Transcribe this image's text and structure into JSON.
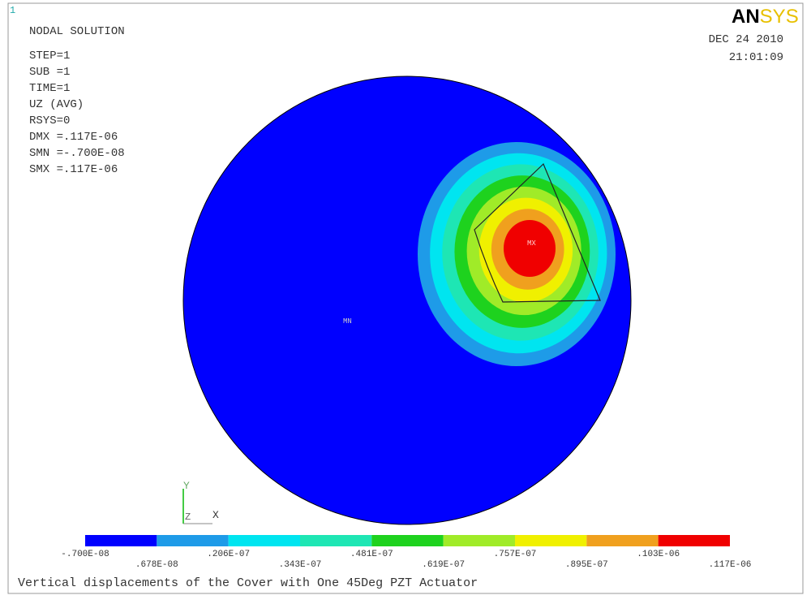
{
  "window_number": "1",
  "header": {
    "title": "NODAL SOLUTION",
    "info": [
      "STEP=1",
      "SUB =1",
      "TIME=1",
      "UZ        (AVG)",
      "RSYS=0",
      "DMX =.117E-06",
      "SMN =-.700E-08",
      "SMX =.117E-06"
    ]
  },
  "logo": {
    "an": "AN",
    "sys": "SYS"
  },
  "date": "DEC 24 2010",
  "time": "21:01:09",
  "plot_labels": {
    "mn": "MN",
    "mx": "MX"
  },
  "triad": {
    "y": "Y",
    "z": "Z",
    "x": "X"
  },
  "legend": {
    "colors": [
      "#0000ff",
      "#1e9be8",
      "#00e5f0",
      "#1ee6b4",
      "#1ed21e",
      "#a0eb28",
      "#f0f000",
      "#f0a01e",
      "#f00000"
    ],
    "labels": [
      "-.700E-08",
      ".678E-08",
      ".206E-07",
      ".343E-07",
      ".481E-07",
      ".619E-07",
      ".757E-07",
      ".895E-07",
      ".103E-06",
      ".117E-06"
    ]
  },
  "caption": "Vertical displacements of the Cover with One 45Deg PZT Actuator"
}
